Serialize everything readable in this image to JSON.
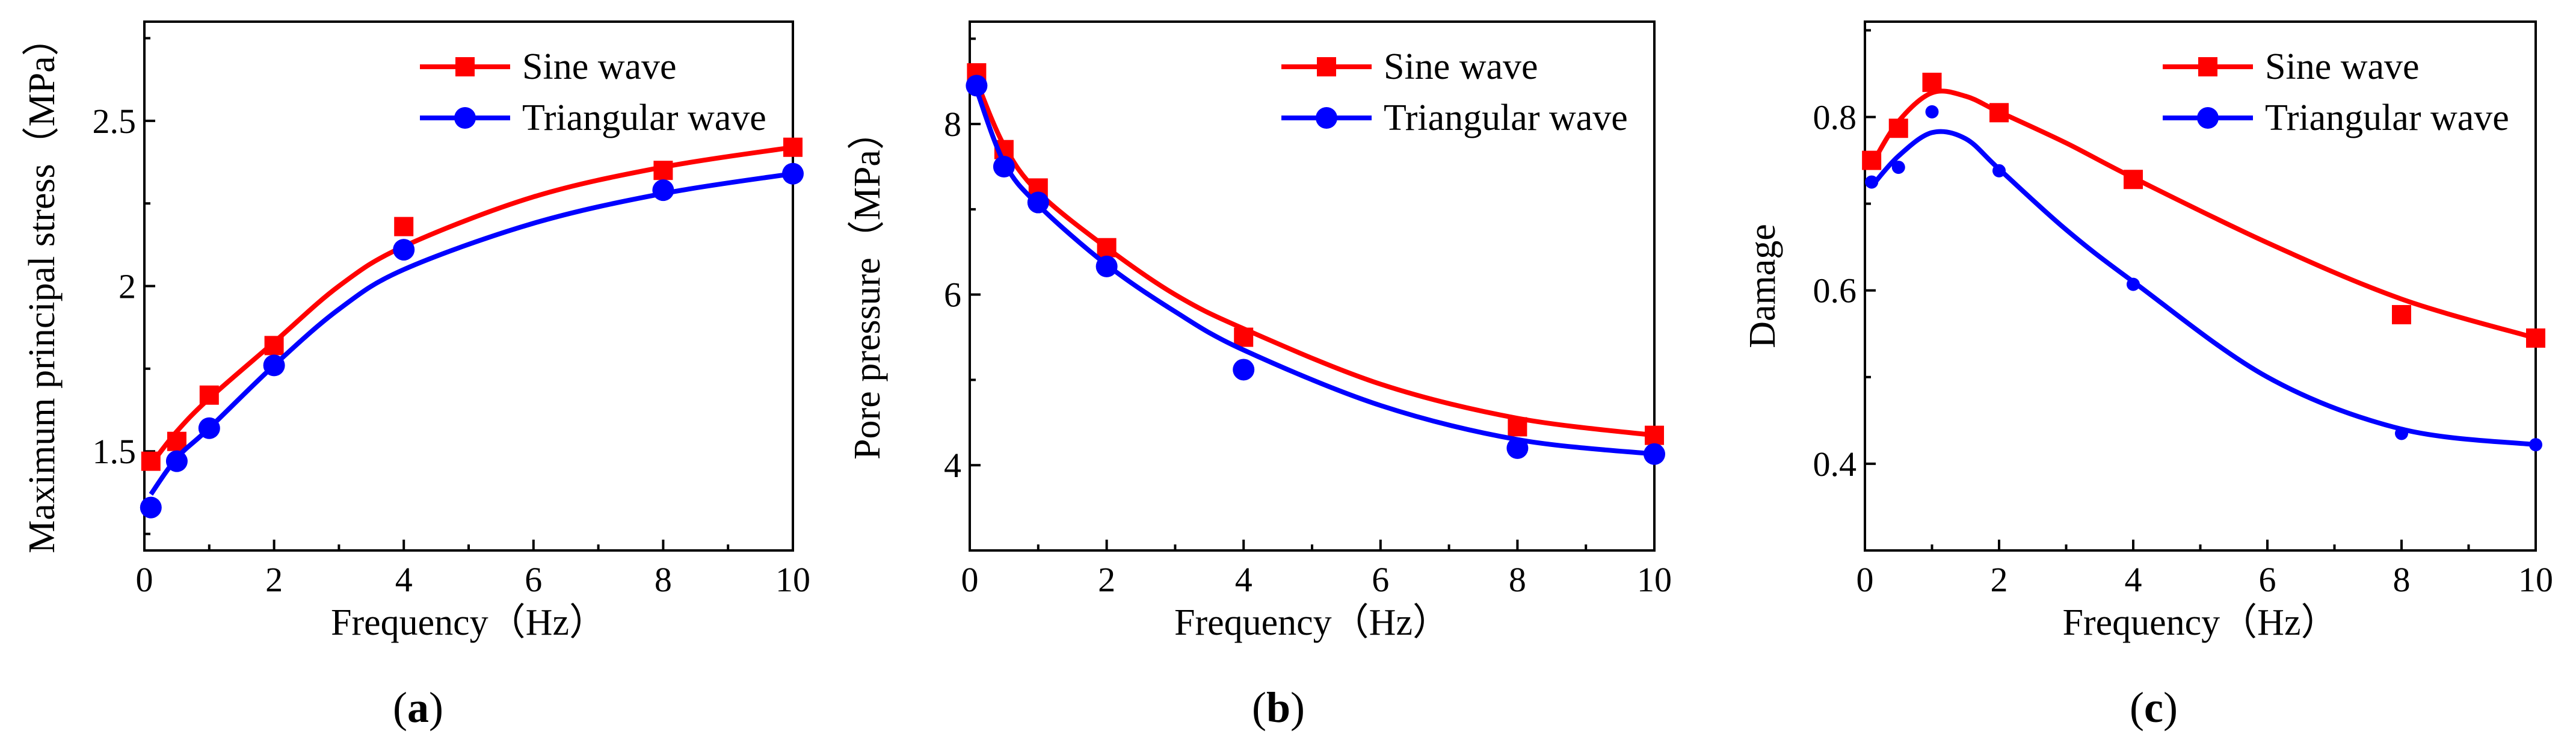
{
  "colors": {
    "sine": "#ff0000",
    "triangular": "#0000ff",
    "axis": "#000000"
  },
  "chart_data": [
    {
      "type": "line",
      "panel_label_open": "(",
      "panel_label_letter": "a",
      "panel_label_close": ")",
      "xlabel": "Frequency（Hz）",
      "ylabel": "Maximum principal stress（MPa）",
      "xlim": [
        0,
        10
      ],
      "ylim": [
        1.2,
        2.8
      ],
      "xticks": [
        0,
        2,
        4,
        6,
        8,
        10
      ],
      "yticks": [
        1.5,
        2.0,
        2.5
      ],
      "ytick_labels": [
        "1.5",
        "2",
        "2.5"
      ],
      "legend_position": "top-right",
      "series": [
        {
          "name": "Sine wave",
          "marker": "square",
          "points": [
            [
              0.1,
              1.47
            ],
            [
              0.5,
              1.53
            ],
            [
              1,
              1.67
            ],
            [
              2,
              1.82
            ],
            [
              4,
              2.18
            ],
            [
              8,
              2.35
            ],
            [
              10,
              2.42
            ]
          ],
          "curve": [
            [
              0.1,
              1.46
            ],
            [
              0.5,
              1.56
            ],
            [
              1,
              1.66
            ],
            [
              2,
              1.83
            ],
            [
              3,
              2.0
            ],
            [
              4,
              2.12
            ],
            [
              6,
              2.27
            ],
            [
              8,
              2.36
            ],
            [
              10,
              2.42
            ]
          ]
        },
        {
          "name": "Triangular wave",
          "marker": "circle",
          "points": [
            [
              0.1,
              1.33
            ],
            [
              0.5,
              1.47
            ],
            [
              1,
              1.57
            ],
            [
              2,
              1.76
            ],
            [
              4,
              2.11
            ],
            [
              8,
              2.29
            ],
            [
              10,
              2.34
            ]
          ],
          "curve": [
            [
              0.1,
              1.37
            ],
            [
              0.5,
              1.48
            ],
            [
              1,
              1.57
            ],
            [
              2,
              1.76
            ],
            [
              3,
              1.93
            ],
            [
              4,
              2.05
            ],
            [
              6,
              2.19
            ],
            [
              8,
              2.28
            ],
            [
              10,
              2.34
            ]
          ]
        }
      ]
    },
    {
      "type": "line",
      "panel_label_open": "(",
      "panel_label_letter": "b",
      "panel_label_close": ")",
      "xlabel": "Frequency（Hz）",
      "ylabel": "Pore pressure（MPa）",
      "xlim": [
        0,
        10
      ],
      "ylim": [
        3,
        9.2
      ],
      "xticks": [
        0,
        2,
        4,
        6,
        8,
        10
      ],
      "yticks": [
        4,
        6,
        8
      ],
      "ytick_labels": [
        "4",
        "6",
        "8"
      ],
      "legend_position": "top-right",
      "series": [
        {
          "name": "Sine wave",
          "marker": "square",
          "points": [
            [
              0.1,
              8.6
            ],
            [
              0.5,
              7.7
            ],
            [
              1,
              7.25
            ],
            [
              2,
              6.55
            ],
            [
              4,
              5.5
            ],
            [
              8,
              4.45
            ],
            [
              10,
              4.35
            ]
          ],
          "curve": [
            [
              0.1,
              8.5
            ],
            [
              0.5,
              7.75
            ],
            [
              1,
              7.2
            ],
            [
              2,
              6.55
            ],
            [
              3,
              6.0
            ],
            [
              4,
              5.6
            ],
            [
              6,
              4.95
            ],
            [
              8,
              4.55
            ],
            [
              10,
              4.35
            ]
          ]
        },
        {
          "name": "Triangular wave",
          "marker": "circle",
          "points": [
            [
              0.1,
              8.45
            ],
            [
              0.5,
              7.5
            ],
            [
              1,
              7.08
            ],
            [
              2,
              6.33
            ],
            [
              4,
              5.12
            ],
            [
              8,
              4.2
            ],
            [
              10,
              4.13
            ]
          ],
          "curve": [
            [
              0.1,
              8.4
            ],
            [
              0.5,
              7.55
            ],
            [
              1,
              7.05
            ],
            [
              2,
              6.35
            ],
            [
              3,
              5.8
            ],
            [
              4,
              5.35
            ],
            [
              6,
              4.7
            ],
            [
              8,
              4.3
            ],
            [
              10,
              4.13
            ]
          ]
        }
      ]
    },
    {
      "type": "line",
      "panel_label_open": "(",
      "panel_label_letter": "c",
      "panel_label_close": ")",
      "xlabel": "Frequency（Hz）",
      "ylabel": "Damage",
      "xlim": [
        0,
        10
      ],
      "ylim": [
        0.3,
        0.91
      ],
      "xticks": [
        0,
        2,
        4,
        6,
        8,
        10
      ],
      "yticks": [
        0.4,
        0.6,
        0.8
      ],
      "ytick_labels": [
        "0.4",
        "0.6",
        "0.8"
      ],
      "legend_position": "top-right",
      "series": [
        {
          "name": "Sine wave",
          "marker": "square",
          "points": [
            [
              0.1,
              0.75
            ],
            [
              0.5,
              0.787
            ],
            [
              1,
              0.84
            ],
            [
              2,
              0.805
            ],
            [
              4,
              0.728
            ],
            [
              8,
              0.572
            ],
            [
              10,
              0.545
            ]
          ],
          "curve": [
            [
              0.1,
              0.745
            ],
            [
              0.5,
              0.795
            ],
            [
              1,
              0.828
            ],
            [
              1.5,
              0.824
            ],
            [
              2,
              0.806
            ],
            [
              3,
              0.77
            ],
            [
              4,
              0.73
            ],
            [
              6,
              0.655
            ],
            [
              8,
              0.59
            ],
            [
              10,
              0.545
            ]
          ]
        },
        {
          "name": "Triangular wave",
          "marker": "circle-small",
          "points": [
            [
              0.1,
              0.725
            ],
            [
              0.5,
              0.742
            ],
            [
              1,
              0.806
            ],
            [
              2,
              0.738
            ],
            [
              4,
              0.607
            ],
            [
              8,
              0.435
            ],
            [
              10,
              0.422
            ]
          ],
          "curve": [
            [
              0.1,
              0.72
            ],
            [
              0.5,
              0.755
            ],
            [
              1,
              0.782
            ],
            [
              1.5,
              0.775
            ],
            [
              2,
              0.74
            ],
            [
              3,
              0.67
            ],
            [
              4,
              0.61
            ],
            [
              6,
              0.5
            ],
            [
              8,
              0.44
            ],
            [
              10,
              0.422
            ]
          ]
        }
      ]
    }
  ]
}
